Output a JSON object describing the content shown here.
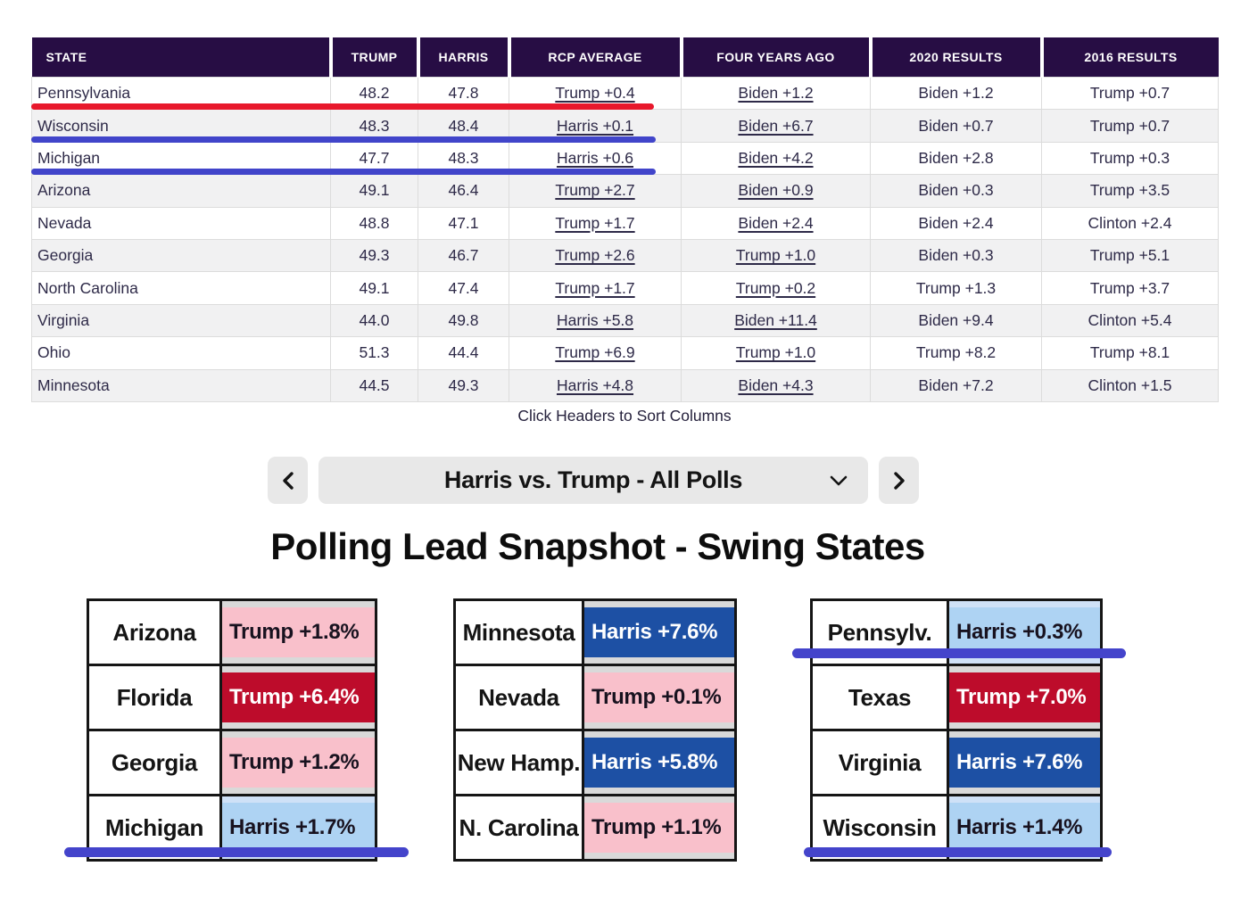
{
  "main_table": {
    "columns": [
      "STATE",
      "TRUMP",
      "HARRIS",
      "RCP AVERAGE",
      "FOUR YEARS AGO",
      "2020 RESULTS",
      "2016 RESULTS"
    ],
    "rows": [
      {
        "state": "Pennsylvania",
        "trump": "48.2",
        "harris": "47.8",
        "rcp_average": "Trump +0.4",
        "four_years_ago": "Biden +1.2",
        "results_2020": "Biden +1.2",
        "results_2016": "Trump +0.7",
        "underline": "red"
      },
      {
        "state": "Wisconsin",
        "trump": "48.3",
        "harris": "48.4",
        "rcp_average": "Harris +0.1",
        "four_years_ago": "Biden +6.7",
        "results_2020": "Biden +0.7",
        "results_2016": "Trump +0.7",
        "underline": "blue"
      },
      {
        "state": "Michigan",
        "trump": "47.7",
        "harris": "48.3",
        "rcp_average": "Harris +0.6",
        "four_years_ago": "Biden +4.2",
        "results_2020": "Biden +2.8",
        "results_2016": "Trump +0.3",
        "underline": "blue"
      },
      {
        "state": "Arizona",
        "trump": "49.1",
        "harris": "46.4",
        "rcp_average": "Trump +2.7",
        "four_years_ago": "Biden +0.9",
        "results_2020": "Biden +0.3",
        "results_2016": "Trump +3.5",
        "underline": null
      },
      {
        "state": "Nevada",
        "trump": "48.8",
        "harris": "47.1",
        "rcp_average": "Trump +1.7",
        "four_years_ago": "Biden +2.4",
        "results_2020": "Biden +2.4",
        "results_2016": "Clinton +2.4",
        "underline": null
      },
      {
        "state": "Georgia",
        "trump": "49.3",
        "harris": "46.7",
        "rcp_average": "Trump +2.6",
        "four_years_ago": "Trump +1.0",
        "results_2020": "Biden +0.3",
        "results_2016": "Trump +5.1",
        "underline": null
      },
      {
        "state": "North Carolina",
        "trump": "49.1",
        "harris": "47.4",
        "rcp_average": "Trump +1.7",
        "four_years_ago": "Trump +0.2",
        "results_2020": "Trump +1.3",
        "results_2016": "Trump +3.7",
        "underline": null
      },
      {
        "state": "Virginia",
        "trump": "44.0",
        "harris": "49.8",
        "rcp_average": "Harris +5.8",
        "four_years_ago": "Biden +11.4",
        "results_2020": "Biden +9.4",
        "results_2016": "Clinton +5.4",
        "underline": null
      },
      {
        "state": "Ohio",
        "trump": "51.3",
        "harris": "44.4",
        "rcp_average": "Trump +6.9",
        "four_years_ago": "Trump +1.0",
        "results_2020": "Trump +8.2",
        "results_2016": "Trump +8.1",
        "underline": null
      },
      {
        "state": "Minnesota",
        "trump": "44.5",
        "harris": "49.3",
        "rcp_average": "Harris +4.8",
        "four_years_ago": "Biden +4.3",
        "results_2020": "Biden +7.2",
        "results_2016": "Clinton +1.5",
        "underline": null
      }
    ],
    "footnote": "Click Headers to Sort Columns"
  },
  "poll_selector": {
    "label": "Harris vs. Trump - All Polls"
  },
  "snapshot": {
    "title": "Polling Lead Snapshot - Swing States",
    "tables": [
      {
        "rows": [
          {
            "state": "Arizona",
            "value": "Trump +1.8%",
            "tone": "pink",
            "underlined": false
          },
          {
            "state": "Florida",
            "value": "Trump +6.4%",
            "tone": "red",
            "underlined": false
          },
          {
            "state": "Georgia",
            "value": "Trump +1.2%",
            "tone": "pink",
            "underlined": false
          },
          {
            "state": "Michigan",
            "value": "Harris +1.7%",
            "tone": "lightblue",
            "underlined": true
          }
        ]
      },
      {
        "rows": [
          {
            "state": "Minnesota",
            "value": "Harris +7.6%",
            "tone": "blue",
            "underlined": false
          },
          {
            "state": "Nevada",
            "value": "Trump +0.1%",
            "tone": "pink",
            "underlined": false
          },
          {
            "state": "New Hamp.",
            "value": "Harris +5.8%",
            "tone": "blue",
            "underlined": false
          },
          {
            "state": "N. Carolina",
            "value": "Trump +1.1%",
            "tone": "pink",
            "underlined": false
          }
        ]
      },
      {
        "rows": [
          {
            "state": "Pennsylv.",
            "value": "Harris +0.3%",
            "tone": "lightblue",
            "underlined": true
          },
          {
            "state": "Texas",
            "value": "Trump +7.0%",
            "tone": "red",
            "underlined": false
          },
          {
            "state": "Virginia",
            "value": "Harris +7.6%",
            "tone": "blue",
            "underlined": false
          },
          {
            "state": "Wisconsin",
            "value": "Harris +1.4%",
            "tone": "lightblue",
            "underlined": true
          }
        ]
      }
    ]
  },
  "colors": {
    "header_purple": "#270d44",
    "row_stripe": "#f1f1f2",
    "red_marker": "#e8182c",
    "blue_marker": "#4145ca",
    "pink": "#f9c0cb",
    "crimson": "#bd0c2b",
    "dark_blue": "#1d50a4",
    "light_blue": "#aed3f3",
    "cell_gray": "#d9d9d9",
    "selector_gray": "#e8e8e8"
  }
}
